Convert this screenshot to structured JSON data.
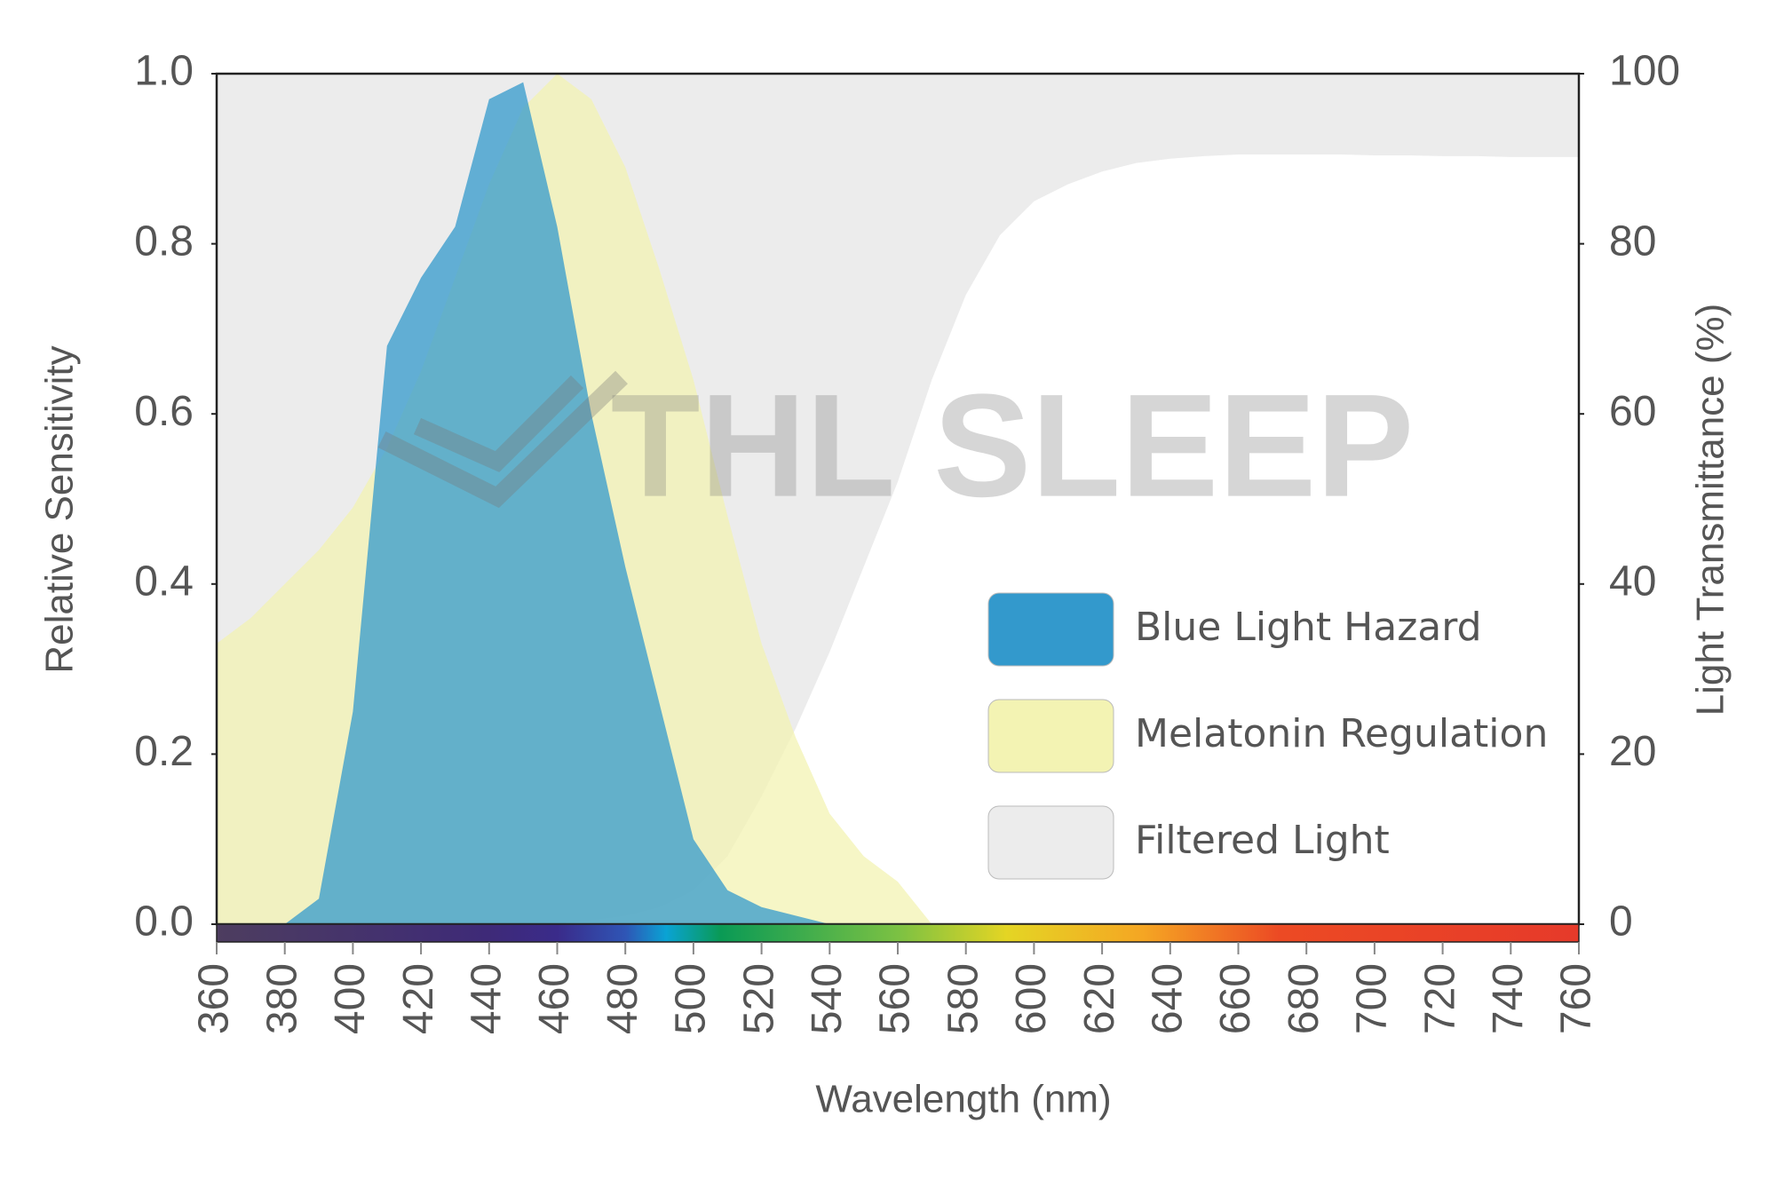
{
  "chart_data": {
    "type": "area",
    "x_label": "Wavelength (nm)",
    "y_label": "Relative Sensitivity",
    "y2_label": "Light Transmittance (%)",
    "watermark": "THL SLEEP",
    "x": [
      360,
      370,
      380,
      390,
      400,
      410,
      420,
      430,
      440,
      450,
      460,
      470,
      480,
      490,
      500,
      510,
      520,
      530,
      540,
      550,
      560,
      570,
      580,
      590,
      600,
      610,
      620,
      630,
      640,
      650,
      660,
      670,
      680,
      690,
      700,
      710,
      720,
      730,
      740,
      750,
      760
    ],
    "xlim": [
      360,
      760
    ],
    "xticks": [
      360,
      380,
      400,
      420,
      440,
      460,
      480,
      500,
      520,
      540,
      560,
      580,
      600,
      620,
      640,
      660,
      680,
      700,
      720,
      740,
      760
    ],
    "ylim": [
      0,
      1
    ],
    "yticks": [
      {
        "value": 0,
        "label": "0.0"
      },
      0.2,
      0.4,
      0.6,
      0.8,
      {
        "value": 1,
        "label": "1.0"
      }
    ],
    "y2lim": [
      0,
      100
    ],
    "y2ticks": [
      0,
      20,
      40,
      60,
      80,
      100
    ],
    "legend": "lower right",
    "series": [
      {
        "name": "Filtered Light",
        "color": "#ececec",
        "axis": "y2",
        "fill": "above",
        "values": [
          0,
          0,
          0,
          0,
          0,
          0,
          0,
          0,
          0,
          0,
          0,
          0.5,
          1,
          2,
          4,
          8,
          15,
          23,
          32,
          42,
          52,
          64,
          74,
          81,
          85,
          87,
          88.5,
          89.5,
          90,
          90.3,
          90.5,
          90.5,
          90.5,
          90.5,
          90.4,
          90.4,
          90.3,
          90.3,
          90.2,
          90.2,
          90.2
        ]
      },
      {
        "name": "Melatonin Regulation",
        "color": "#f3f3b3",
        "fill": "below",
        "values": [
          0.33,
          0.36,
          0.4,
          0.44,
          0.49,
          0.56,
          0.65,
          0.76,
          0.87,
          0.96,
          1.0,
          0.97,
          0.89,
          0.77,
          0.64,
          0.48,
          0.33,
          0.22,
          0.13,
          0.08,
          0.05,
          0,
          0,
          0,
          0,
          0,
          0,
          0,
          0,
          0,
          0,
          0,
          0,
          0,
          0,
          0,
          0,
          0,
          0,
          0,
          0
        ]
      },
      {
        "name": "Blue Light Hazard",
        "color": "#3399cc",
        "fill": "below",
        "values": [
          0,
          0,
          0,
          0.03,
          0.25,
          0.68,
          0.76,
          0.82,
          0.97,
          0.99,
          0.82,
          0.6,
          0.42,
          0.26,
          0.1,
          0.04,
          0.02,
          0.01,
          0,
          0,
          0,
          0,
          0,
          0,
          0,
          0,
          0,
          0,
          0,
          0,
          0,
          0,
          0,
          0,
          0,
          0,
          0,
          0,
          0,
          0,
          0
        ]
      }
    ]
  }
}
